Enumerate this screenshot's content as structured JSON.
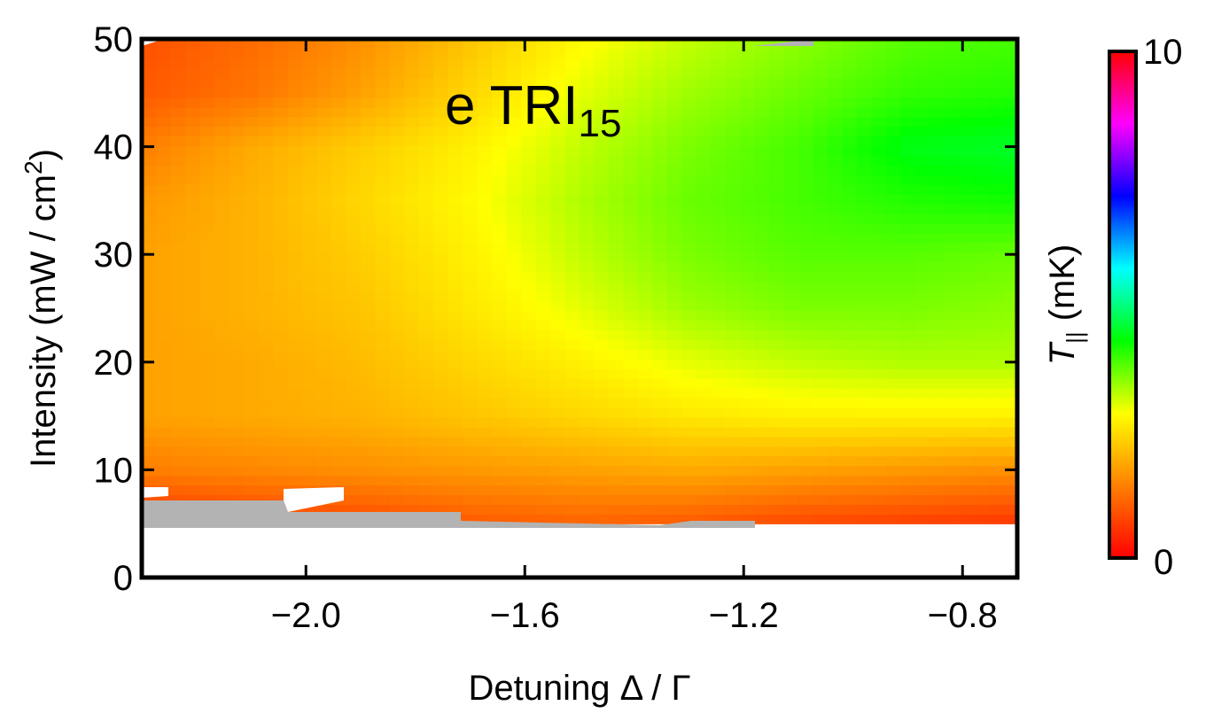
{
  "chart_data": {
    "type": "heatmap",
    "panel_label": "e TRI",
    "panel_label_sub": "15",
    "xlabel": "Detuning Δ / Γ",
    "ylabel": "Intensity (mW / cm",
    "ylabel_sup": "2",
    "ylabel_close": ")",
    "xlim": [
      -2.3,
      -0.7
    ],
    "ylim": [
      0,
      50
    ],
    "xticks": [
      -2.0,
      -1.6,
      -1.2,
      -0.8
    ],
    "xtick_labels": [
      "−2.0",
      "−1.6",
      "−1.2",
      "−0.8"
    ],
    "yticks": [
      0,
      10,
      20,
      30,
      40,
      50
    ],
    "ytick_labels": [
      "0",
      "10",
      "20",
      "30",
      "40",
      "50"
    ],
    "colorbar": {
      "label": "T",
      "label_sub": "||",
      "label_units": "(mK)",
      "min": 0,
      "max": 10,
      "min_label": "0",
      "max_label": "10",
      "colormap": [
        "#ff0000",
        "#ff8000",
        "#ffff00",
        "#00ff00",
        "#00ffff",
        "#0000ff",
        "#ff00ff",
        "#ff0000"
      ]
    },
    "x": [
      -2.3,
      -2.1,
      -1.9,
      -1.7,
      -1.5,
      -1.3,
      -1.1,
      -0.9,
      -0.7
    ],
    "y": [
      5,
      10,
      15,
      20,
      25,
      30,
      35,
      40,
      45,
      50
    ],
    "z": [
      [
        0.5,
        0.7,
        0.8,
        1.0,
        1.1,
        1.0,
        0.8,
        0.7,
        0.6
      ],
      [
        1.4,
        1.5,
        1.6,
        1.7,
        1.8,
        1.9,
        1.8,
        1.7,
        1.6
      ],
      [
        1.8,
        1.9,
        2.0,
        2.2,
        2.4,
        2.6,
        2.7,
        2.7,
        2.7
      ],
      [
        1.8,
        1.9,
        2.1,
        2.4,
        2.7,
        3.0,
        3.2,
        3.3,
        3.3
      ],
      [
        1.8,
        2.0,
        2.2,
        2.6,
        3.0,
        3.4,
        3.6,
        3.6,
        3.5
      ],
      [
        1.8,
        2.0,
        2.3,
        2.7,
        3.2,
        3.6,
        3.8,
        3.8,
        3.7
      ],
      [
        1.7,
        2.0,
        2.4,
        2.8,
        3.3,
        3.7,
        3.9,
        4.1,
        4.2
      ],
      [
        1.4,
        1.9,
        2.3,
        2.7,
        3.2,
        3.6,
        3.9,
        4.4,
        4.5
      ],
      [
        1.0,
        1.3,
        1.8,
        2.4,
        3.0,
        3.4,
        3.7,
        4.0,
        4.1
      ],
      [
        0.9,
        1.2,
        1.6,
        2.2,
        2.8,
        3.2,
        3.5,
        3.8,
        3.9
      ]
    ]
  }
}
